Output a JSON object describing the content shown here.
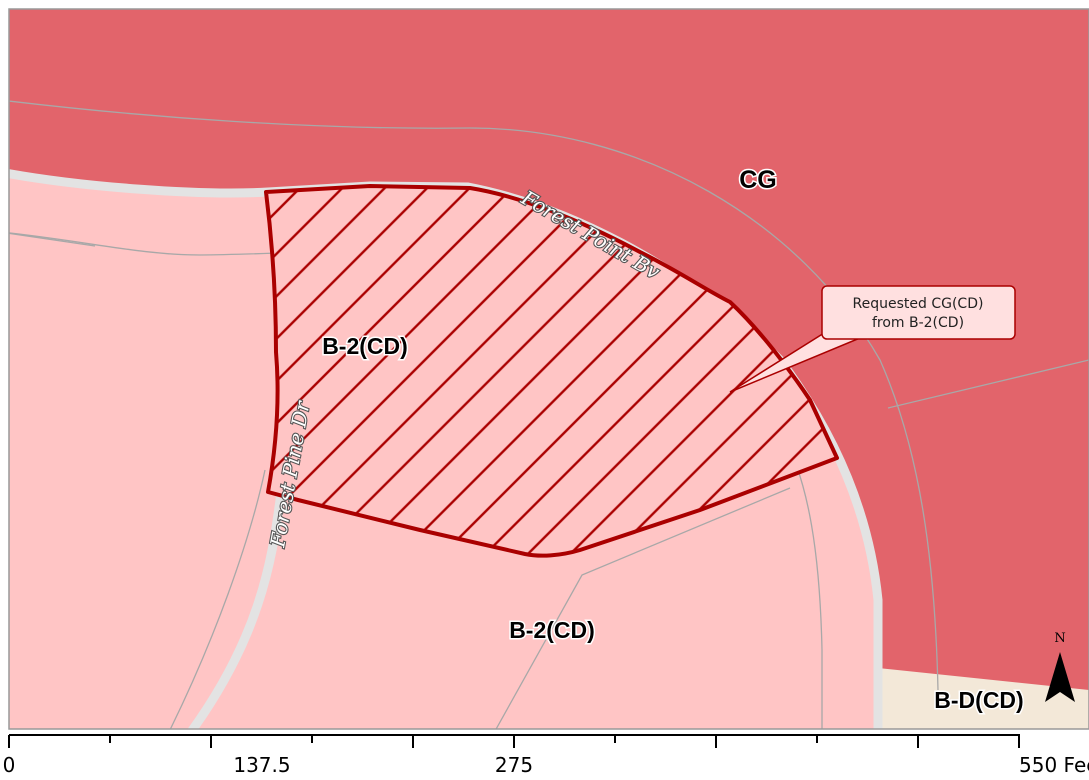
{
  "map": {
    "zones": {
      "cg": "CG",
      "b2_west": "B-2(CD)",
      "b2_south": "B-2(CD)",
      "bd": "B-D(CD)"
    },
    "streets": {
      "forest_point": "Forest Point Bv",
      "forest_pine": "Forest Pine Dr"
    },
    "callout": {
      "line1": "Requested CG(CD)",
      "line2": "from B-2(CD)"
    },
    "north_arrow": {
      "label": "N",
      "icon": "north-arrow-icon"
    },
    "scale_bar": {
      "labels": [
        "0",
        "137.5",
        "275",
        "550 Feet"
      ]
    },
    "colors": {
      "cg": "#e2646b",
      "b2": "#ffc5c5",
      "bd": "#f3e8d8",
      "hatch": "#aa0000",
      "street_casing": "#e3e3e3",
      "parcel_line": "#a8a8a8"
    }
  }
}
